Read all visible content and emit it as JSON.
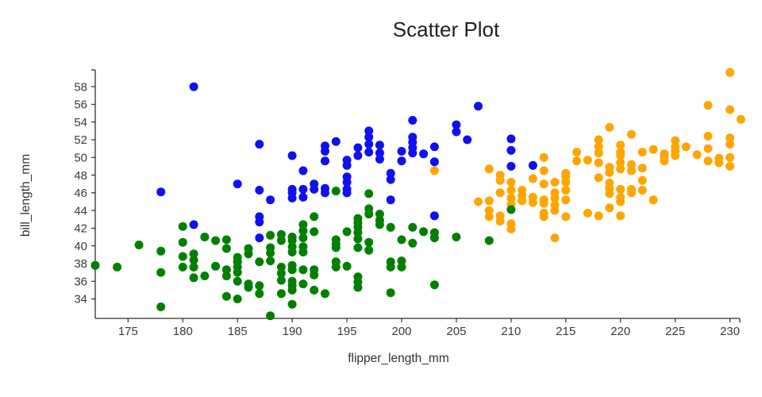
{
  "figure": {
    "title": "Scatter Plot"
  },
  "chart_data": {
    "type": "scatter",
    "title": "Scatter Plot",
    "xlabel": "flipper_length_mm",
    "ylabel": "bill_length_mm",
    "xlim": [
      172.0,
      230.9
    ],
    "ylim": [
      31.8,
      59.9
    ],
    "x_ticks": [
      175,
      180,
      185,
      190,
      195,
      200,
      205,
      210,
      215,
      220,
      225,
      230
    ],
    "y_ticks": [
      34,
      36,
      38,
      40,
      42,
      44,
      46,
      48,
      50,
      52,
      54,
      56,
      58
    ],
    "grid": false,
    "legend": "none",
    "marker_radius_px": 5.5,
    "axis_color": "#2f2f2f",
    "series": [
      {
        "name": "blue",
        "color": "#1010f0",
        "points": [
          [
            178,
            46.1
          ],
          [
            181,
            58
          ],
          [
            181,
            42.4
          ],
          [
            185,
            47
          ],
          [
            187,
            51.5
          ],
          [
            187,
            46.3
          ],
          [
            187,
            43.3
          ],
          [
            187,
            42.7
          ],
          [
            187,
            40.9
          ],
          [
            188,
            45.2
          ],
          [
            190,
            50.2
          ],
          [
            190,
            46.4
          ],
          [
            190,
            46
          ],
          [
            190,
            45.4
          ],
          [
            191,
            48.5
          ],
          [
            191,
            46.4
          ],
          [
            191,
            45.5
          ],
          [
            192,
            47
          ],
          [
            192,
            46.4
          ],
          [
            193,
            51.3
          ],
          [
            193,
            50.7
          ],
          [
            193,
            49.6
          ],
          [
            193,
            46.5
          ],
          [
            193,
            46
          ],
          [
            194,
            51.8
          ],
          [
            195,
            49.7
          ],
          [
            195,
            49.1
          ],
          [
            195,
            47.8
          ],
          [
            195,
            47.2
          ],
          [
            195,
            46.4
          ],
          [
            195,
            46
          ],
          [
            196,
            51.1
          ],
          [
            196,
            50.2
          ],
          [
            197,
            53
          ],
          [
            197,
            52.3
          ],
          [
            197,
            51.5
          ],
          [
            197,
            50.6
          ],
          [
            198,
            51.4
          ],
          [
            198,
            50.5
          ],
          [
            198,
            49.8
          ],
          [
            199,
            48.2
          ],
          [
            199,
            47.5
          ],
          [
            199,
            45.2
          ],
          [
            200,
            50.7
          ],
          [
            200,
            49.6
          ],
          [
            201,
            54.2
          ],
          [
            201,
            52.3
          ],
          [
            201,
            51.7
          ],
          [
            201,
            51.1
          ],
          [
            201,
            50.5
          ],
          [
            202,
            50.4
          ],
          [
            203,
            51.2
          ],
          [
            203,
            49.5
          ],
          [
            203,
            43.4
          ],
          [
            205,
            53.7
          ],
          [
            205,
            52.9
          ],
          [
            206,
            52
          ],
          [
            207,
            55.8
          ],
          [
            210,
            52.1
          ],
          [
            210,
            50.8
          ],
          [
            210,
            49
          ],
          [
            212,
            49.1
          ]
        ]
      },
      {
        "name": "orange",
        "color": "#ffa500",
        "points": [
          [
            203,
            48.5
          ],
          [
            207,
            45
          ],
          [
            208,
            48.7
          ],
          [
            208,
            45.1
          ],
          [
            208,
            44
          ],
          [
            208,
            43.3
          ],
          [
            209,
            48
          ],
          [
            209,
            47.4
          ],
          [
            209,
            46
          ],
          [
            209,
            43.4
          ],
          [
            209,
            42.8
          ],
          [
            210,
            47.2
          ],
          [
            210,
            46.3
          ],
          [
            210,
            45.4
          ],
          [
            210,
            44.7
          ],
          [
            210,
            42.5
          ],
          [
            210,
            41.9
          ],
          [
            211,
            46.3
          ],
          [
            211,
            45.7
          ],
          [
            211,
            45.1
          ],
          [
            212,
            47.6
          ],
          [
            212,
            45.5
          ],
          [
            212,
            44.9
          ],
          [
            213,
            50
          ],
          [
            213,
            48.5
          ],
          [
            213,
            47
          ],
          [
            213,
            45.2
          ],
          [
            213,
            44.8
          ],
          [
            213,
            43.7
          ],
          [
            213,
            43.3
          ],
          [
            214,
            47.2
          ],
          [
            214,
            46
          ],
          [
            214,
            45.4
          ],
          [
            214,
            44.6
          ],
          [
            214,
            44
          ],
          [
            214,
            40.9
          ],
          [
            215,
            48.2
          ],
          [
            215,
            47.8
          ],
          [
            215,
            47.2
          ],
          [
            215,
            46.3
          ],
          [
            215,
            45.2
          ],
          [
            215,
            43.3
          ],
          [
            216,
            50.6
          ],
          [
            216,
            49.6
          ],
          [
            217,
            49.7
          ],
          [
            217,
            43.7
          ],
          [
            218,
            52
          ],
          [
            218,
            51.2
          ],
          [
            218,
            50.5
          ],
          [
            218,
            49.4
          ],
          [
            218,
            47.7
          ],
          [
            218,
            43.4
          ],
          [
            219,
            53.4
          ],
          [
            219,
            48.9
          ],
          [
            219,
            48.3
          ],
          [
            219,
            47.1
          ],
          [
            219,
            46.5
          ],
          [
            219,
            45.9
          ],
          [
            219,
            44.3
          ],
          [
            220,
            51.4
          ],
          [
            220,
            50.6
          ],
          [
            220,
            50.2
          ],
          [
            220,
            49.4
          ],
          [
            220,
            48.7
          ],
          [
            220,
            46.4
          ],
          [
            220,
            45.5
          ],
          [
            220,
            45
          ],
          [
            220,
            43.4
          ],
          [
            221,
            52.6
          ],
          [
            221,
            49.2
          ],
          [
            221,
            48.5
          ],
          [
            221,
            46.4
          ],
          [
            221,
            46
          ],
          [
            222,
            50.6
          ],
          [
            222,
            48.8
          ],
          [
            222,
            47.4
          ],
          [
            222,
            46.3
          ],
          [
            223,
            50.9
          ],
          [
            223,
            45.2
          ],
          [
            224,
            50.4
          ],
          [
            224,
            50
          ],
          [
            224,
            49.6
          ],
          [
            225,
            51.9
          ],
          [
            225,
            51.2
          ],
          [
            225,
            50.7
          ],
          [
            225,
            50.2
          ],
          [
            226,
            51.2
          ],
          [
            227,
            50.3
          ],
          [
            228,
            55.9
          ],
          [
            228,
            52.4
          ],
          [
            228,
            51
          ],
          [
            228,
            49.6
          ],
          [
            229,
            49.9
          ],
          [
            229,
            49.4
          ],
          [
            230,
            59.6
          ],
          [
            230,
            55.4
          ],
          [
            230,
            52.2
          ],
          [
            230,
            51.5
          ],
          [
            230,
            50
          ],
          [
            230,
            49
          ],
          [
            231,
            54.3
          ]
        ]
      },
      {
        "name": "green",
        "color": "#008000",
        "points": [
          [
            172,
            37.8
          ],
          [
            174,
            37.6
          ],
          [
            176,
            40.1
          ],
          [
            178,
            39.4
          ],
          [
            178,
            37
          ],
          [
            178,
            33.1
          ],
          [
            180,
            42.2
          ],
          [
            180,
            40.4
          ],
          [
            180,
            38.8
          ],
          [
            180,
            37.6
          ],
          [
            181,
            39.1
          ],
          [
            181,
            38.4
          ],
          [
            181,
            37.6
          ],
          [
            181,
            36.4
          ],
          [
            182,
            41
          ],
          [
            182,
            36.6
          ],
          [
            183,
            40.6
          ],
          [
            183,
            37.7
          ],
          [
            184,
            40.7
          ],
          [
            184,
            39.7
          ],
          [
            184,
            37.3
          ],
          [
            184,
            36.6
          ],
          [
            184,
            34.3
          ],
          [
            185,
            38.7
          ],
          [
            185,
            38.2
          ],
          [
            185,
            37.6
          ],
          [
            185,
            37
          ],
          [
            185,
            36
          ],
          [
            185,
            34
          ],
          [
            186,
            39.7
          ],
          [
            186,
            39.1
          ],
          [
            186,
            35.7
          ],
          [
            186,
            35.3
          ],
          [
            187,
            38.2
          ],
          [
            187,
            35.5
          ],
          [
            187,
            34.6
          ],
          [
            188,
            41.2
          ],
          [
            188,
            39.8
          ],
          [
            188,
            39.2
          ],
          [
            188,
            38.3
          ],
          [
            188,
            32.1
          ],
          [
            189,
            41.3
          ],
          [
            189,
            40.6
          ],
          [
            189,
            37.6
          ],
          [
            189,
            36.9
          ],
          [
            189,
            36.1
          ],
          [
            189,
            34.6
          ],
          [
            190,
            41
          ],
          [
            190,
            40.6
          ],
          [
            190,
            39.9
          ],
          [
            190,
            39.3
          ],
          [
            190,
            37.8
          ],
          [
            190,
            37.3
          ],
          [
            190,
            36
          ],
          [
            190,
            35.5
          ],
          [
            190,
            35
          ],
          [
            190,
            33.4
          ],
          [
            191,
            42.4
          ],
          [
            191,
            41.7
          ],
          [
            191,
            40.9
          ],
          [
            191,
            39.9
          ],
          [
            191,
            39.3
          ],
          [
            191,
            37.3
          ],
          [
            191,
            35.7
          ],
          [
            192,
            43.3
          ],
          [
            192,
            41.6
          ],
          [
            192,
            37.3
          ],
          [
            192,
            36.7
          ],
          [
            192,
            35
          ],
          [
            193,
            34.6
          ],
          [
            194,
            46.2
          ],
          [
            194,
            40.7
          ],
          [
            194,
            40.2
          ],
          [
            194,
            39.8
          ],
          [
            194,
            38.2
          ],
          [
            194,
            37.6
          ],
          [
            195,
            41.6
          ],
          [
            195,
            37.7
          ],
          [
            196,
            43.1
          ],
          [
            196,
            42.6
          ],
          [
            196,
            42.1
          ],
          [
            196,
            41.5
          ],
          [
            196,
            40.8
          ],
          [
            196,
            39.8
          ],
          [
            196,
            36.5
          ],
          [
            196,
            35.9
          ],
          [
            196,
            35.3
          ],
          [
            197,
            45.9
          ],
          [
            197,
            44.2
          ],
          [
            197,
            43.6
          ],
          [
            197,
            40.4
          ],
          [
            197,
            39.5
          ],
          [
            198,
            43.6
          ],
          [
            198,
            42.9
          ],
          [
            198,
            42.4
          ],
          [
            199,
            42.1
          ],
          [
            199,
            38.2
          ],
          [
            199,
            37.6
          ],
          [
            199,
            34.7
          ],
          [
            200,
            40.7
          ],
          [
            200,
            38.3
          ],
          [
            200,
            37.6
          ],
          [
            201,
            42.1
          ],
          [
            201,
            40.3
          ],
          [
            202,
            41.6
          ],
          [
            203,
            41.5
          ],
          [
            203,
            40.9
          ],
          [
            203,
            35.6
          ],
          [
            205,
            41
          ],
          [
            208,
            40.6
          ],
          [
            210,
            44.1
          ]
        ]
      }
    ]
  }
}
